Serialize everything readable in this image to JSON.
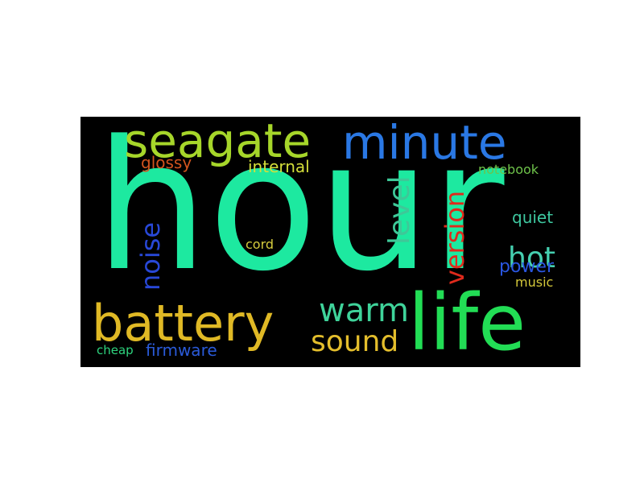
{
  "words": {
    "hour": {
      "text": "hour",
      "color": "#1de9a0"
    },
    "seagate": {
      "text": "seagate",
      "color": "#a6d62a"
    },
    "minute": {
      "text": "minute",
      "color": "#2a78e4"
    },
    "battery": {
      "text": "battery",
      "color": "#e0b925"
    },
    "life": {
      "text": "life",
      "color": "#22dd55"
    },
    "warm": {
      "text": "warm",
      "color": "#3fd39a"
    },
    "sound": {
      "text": "sound",
      "color": "#e4be2c"
    },
    "noise": {
      "text": "noise",
      "color": "#2848d8"
    },
    "level": {
      "text": "level",
      "color": "#3ec898"
    },
    "version": {
      "text": "version",
      "color": "#e02a1c"
    },
    "hot": {
      "text": "hot",
      "color": "#45cfb0"
    },
    "power": {
      "text": "power",
      "color": "#2a56e0"
    },
    "glossy": {
      "text": "glossy",
      "color": "#d2541e"
    },
    "internal": {
      "text": "internal",
      "color": "#d4de3a"
    },
    "firmware": {
      "text": "firmware",
      "color": "#2a5ad8"
    },
    "notebook": {
      "text": "notebook",
      "color": "#6ec24a"
    },
    "quiet": {
      "text": "quiet",
      "color": "#3ec8a0"
    },
    "cord": {
      "text": "cord",
      "color": "#d6cc3e"
    },
    "music": {
      "text": "music",
      "color": "#d4c83a"
    },
    "cheap": {
      "text": "cheap",
      "color": "#2ed47e"
    }
  }
}
